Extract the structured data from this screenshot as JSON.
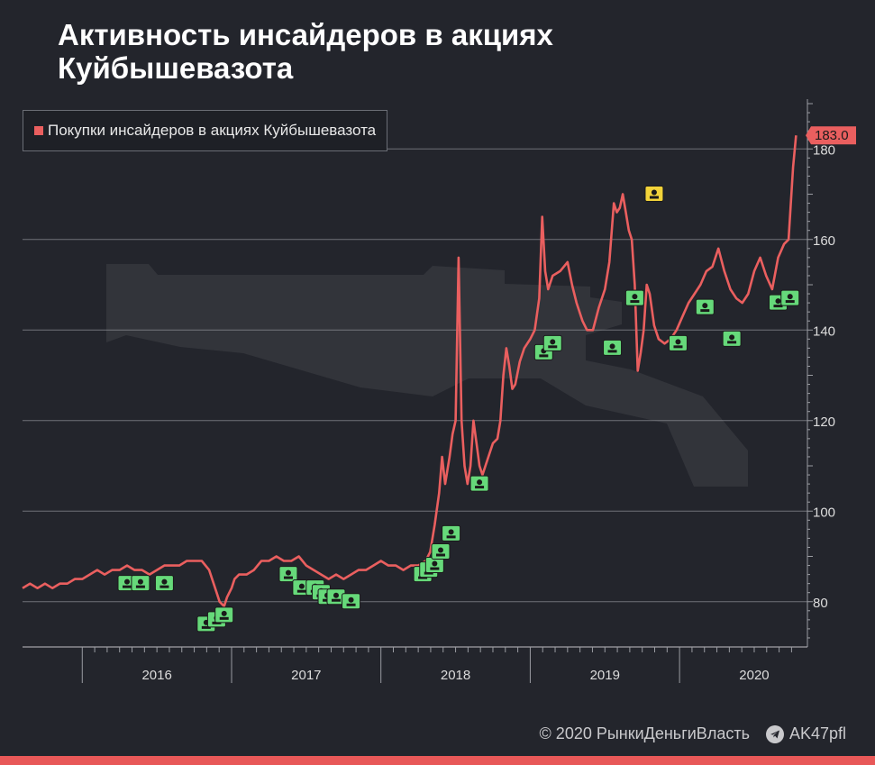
{
  "page": {
    "title": "Активность инсайдеров в акциях Куйбышевазота",
    "footer_copyright": "© 2020  РынкиДеньгиВласть",
    "footer_channel": "AK47pfl"
  },
  "colors": {
    "background": "#23252c",
    "line": "#ea5f5f",
    "buy_marker": "#66d97a",
    "sell_marker": "#f2d33a",
    "grid": "#8a8c92",
    "accent_bar": "#e85858"
  },
  "chart_data": {
    "type": "line",
    "title": "Активность инсайдеров в акциях Куйбышевазота",
    "legend": "Покупки инсайдеров в акциях Куйбышевазота",
    "legend_position": "top-left",
    "x_range": [
      2015.6,
      2020.82
    ],
    "ylim": [
      70,
      191
    ],
    "yticks": [
      80,
      100,
      120,
      140,
      160,
      180
    ],
    "xticks": [
      "2016",
      "2017",
      "2018",
      "2019",
      "2020"
    ],
    "grid": true,
    "last_value_label": "183.0",
    "series": [
      {
        "name": "Покупки инсайдеров в акциях Куйбышевазота",
        "points": [
          [
            2015.6,
            83
          ],
          [
            2015.65,
            84
          ],
          [
            2015.7,
            83
          ],
          [
            2015.75,
            84
          ],
          [
            2015.8,
            83
          ],
          [
            2015.85,
            84
          ],
          [
            2015.9,
            84
          ],
          [
            2015.95,
            85
          ],
          [
            2016.0,
            85
          ],
          [
            2016.05,
            86
          ],
          [
            2016.1,
            87
          ],
          [
            2016.15,
            86
          ],
          [
            2016.2,
            87
          ],
          [
            2016.25,
            87
          ],
          [
            2016.3,
            88
          ],
          [
            2016.35,
            87
          ],
          [
            2016.4,
            87
          ],
          [
            2016.45,
            86
          ],
          [
            2016.5,
            87
          ],
          [
            2016.55,
            88
          ],
          [
            2016.6,
            88
          ],
          [
            2016.65,
            88
          ],
          [
            2016.7,
            89
          ],
          [
            2016.75,
            89
          ],
          [
            2016.8,
            89
          ],
          [
            2016.85,
            87
          ],
          [
            2016.88,
            84
          ],
          [
            2016.9,
            82
          ],
          [
            2016.92,
            80
          ],
          [
            2016.95,
            79
          ],
          [
            2016.97,
            81
          ],
          [
            2017.0,
            83
          ],
          [
            2017.02,
            85
          ],
          [
            2017.05,
            86
          ],
          [
            2017.1,
            86
          ],
          [
            2017.15,
            87
          ],
          [
            2017.2,
            89
          ],
          [
            2017.25,
            89
          ],
          [
            2017.3,
            90
          ],
          [
            2017.35,
            89
          ],
          [
            2017.4,
            89
          ],
          [
            2017.45,
            90
          ],
          [
            2017.5,
            88
          ],
          [
            2017.55,
            87
          ],
          [
            2017.6,
            86
          ],
          [
            2017.65,
            85
          ],
          [
            2017.7,
            86
          ],
          [
            2017.75,
            85
          ],
          [
            2017.8,
            86
          ],
          [
            2017.85,
            87
          ],
          [
            2017.9,
            87
          ],
          [
            2017.95,
            88
          ],
          [
            2018.0,
            89
          ],
          [
            2018.05,
            88
          ],
          [
            2018.1,
            88
          ],
          [
            2018.15,
            87
          ],
          [
            2018.2,
            88
          ],
          [
            2018.25,
            88
          ],
          [
            2018.3,
            89
          ],
          [
            2018.33,
            91
          ],
          [
            2018.36,
            97
          ],
          [
            2018.39,
            104
          ],
          [
            2018.41,
            112
          ],
          [
            2018.43,
            106
          ],
          [
            2018.46,
            112
          ],
          [
            2018.48,
            117
          ],
          [
            2018.5,
            120
          ],
          [
            2018.52,
            156
          ],
          [
            2018.54,
            120
          ],
          [
            2018.56,
            110
          ],
          [
            2018.58,
            106
          ],
          [
            2018.6,
            110
          ],
          [
            2018.62,
            120
          ],
          [
            2018.64,
            115
          ],
          [
            2018.66,
            110
          ],
          [
            2018.68,
            108
          ],
          [
            2018.7,
            110
          ],
          [
            2018.72,
            112
          ],
          [
            2018.75,
            115
          ],
          [
            2018.78,
            116
          ],
          [
            2018.8,
            120
          ],
          [
            2018.82,
            130
          ],
          [
            2018.84,
            136
          ],
          [
            2018.86,
            132
          ],
          [
            2018.88,
            127
          ],
          [
            2018.9,
            128
          ],
          [
            2018.93,
            133
          ],
          [
            2018.96,
            136
          ],
          [
            2019.0,
            138
          ],
          [
            2019.03,
            140
          ],
          [
            2019.06,
            147
          ],
          [
            2019.08,
            165
          ],
          [
            2019.1,
            153
          ],
          [
            2019.12,
            149
          ],
          [
            2019.15,
            152
          ],
          [
            2019.2,
            153
          ],
          [
            2019.25,
            155
          ],
          [
            2019.28,
            150
          ],
          [
            2019.31,
            146
          ],
          [
            2019.35,
            142
          ],
          [
            2019.38,
            140
          ],
          [
            2019.42,
            140
          ],
          [
            2019.46,
            145
          ],
          [
            2019.5,
            149
          ],
          [
            2019.53,
            155
          ],
          [
            2019.56,
            168
          ],
          [
            2019.58,
            166
          ],
          [
            2019.6,
            167
          ],
          [
            2019.62,
            170
          ],
          [
            2019.64,
            166
          ],
          [
            2019.66,
            162
          ],
          [
            2019.68,
            160
          ],
          [
            2019.7,
            150
          ],
          [
            2019.72,
            131
          ],
          [
            2019.74,
            135
          ],
          [
            2019.76,
            140
          ],
          [
            2019.78,
            150
          ],
          [
            2019.8,
            148
          ],
          [
            2019.83,
            141
          ],
          [
            2019.86,
            138
          ],
          [
            2019.9,
            137
          ],
          [
            2019.94,
            138
          ],
          [
            2019.98,
            140
          ],
          [
            2020.02,
            143
          ],
          [
            2020.06,
            146
          ],
          [
            2020.1,
            148
          ],
          [
            2020.14,
            150
          ],
          [
            2020.18,
            153
          ],
          [
            2020.22,
            154
          ],
          [
            2020.26,
            158
          ],
          [
            2020.3,
            153
          ],
          [
            2020.34,
            149
          ],
          [
            2020.38,
            147
          ],
          [
            2020.42,
            146
          ],
          [
            2020.46,
            148
          ],
          [
            2020.5,
            153
          ],
          [
            2020.54,
            156
          ],
          [
            2020.58,
            152
          ],
          [
            2020.62,
            149
          ],
          [
            2020.66,
            156
          ],
          [
            2020.7,
            159
          ],
          [
            2020.73,
            160
          ],
          [
            2020.76,
            176
          ],
          [
            2020.78,
            183
          ]
        ]
      }
    ],
    "insider_buys": [
      [
        2016.3,
        84
      ],
      [
        2016.39,
        84
      ],
      [
        2016.55,
        84
      ],
      [
        2016.83,
        75
      ],
      [
        2016.9,
        76
      ],
      [
        2016.95,
        77
      ],
      [
        2017.38,
        86
      ],
      [
        2017.47,
        83
      ],
      [
        2017.56,
        83
      ],
      [
        2017.6,
        82
      ],
      [
        2017.64,
        81
      ],
      [
        2017.7,
        81
      ],
      [
        2017.8,
        80
      ],
      [
        2018.28,
        86
      ],
      [
        2018.32,
        87
      ],
      [
        2018.36,
        88
      ],
      [
        2018.4,
        91
      ],
      [
        2018.47,
        95
      ],
      [
        2018.66,
        106
      ],
      [
        2019.09,
        135
      ],
      [
        2019.15,
        137
      ],
      [
        2019.55,
        136
      ],
      [
        2019.7,
        147
      ],
      [
        2019.99,
        137
      ],
      [
        2020.17,
        145
      ],
      [
        2020.35,
        138
      ],
      [
        2020.66,
        146
      ],
      [
        2020.74,
        147
      ]
    ],
    "insider_sells": [
      [
        2019.83,
        170
      ]
    ]
  }
}
